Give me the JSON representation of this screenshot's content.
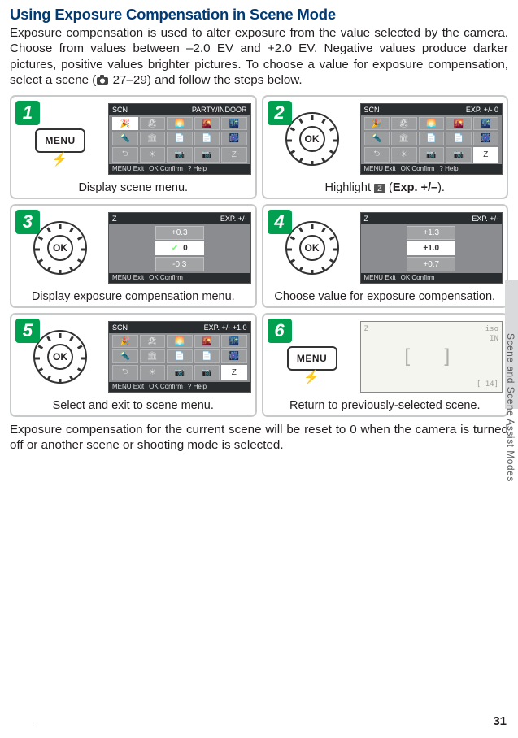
{
  "heading": "Using Exposure Compensation in Scene Mode",
  "intro_1": "Exposure compensation is used to alter exposure from the value selected by the camera.  Choose from values between –2.0 EV and +2.0 EV.  Negative values produce darker pictures, positive values brighter pictures.  To choose a value for exposure compensation, select a scene (",
  "intro_ref": " 27–29",
  "intro_2": ") and follow the steps below.",
  "cards": [
    {
      "num": "1",
      "caption_plain": "Display scene menu.",
      "illus": "menu",
      "lcd": {
        "top_left": "SCN",
        "top_right": "PARTY/INDOOR",
        "bottom": [
          "MENU Exit",
          "OK Confirm",
          "? Help"
        ],
        "type": "grid",
        "selected": 0
      }
    },
    {
      "num": "2",
      "caption_prefix": "Highlight ",
      "caption_icon": "Z",
      "caption_mid": " (",
      "caption_bold": "Exp. +/–",
      "caption_suffix": ").",
      "illus": "dial",
      "lcd": {
        "top_left": "SCN",
        "top_right": "EXP. +/-  0",
        "bottom": [
          "MENU Exit",
          "OK Confirm",
          "? Help"
        ],
        "type": "grid",
        "selected": 14
      }
    },
    {
      "num": "3",
      "caption_plain": "Display exposure compensation menu.",
      "illus": "dial",
      "lcd": {
        "top_left": "Z",
        "top_right": "EXP. +/-",
        "bottom": [
          "MENU Exit",
          "OK Confirm"
        ],
        "type": "exp",
        "rows": [
          {
            "label": "+0.3",
            "active": false
          },
          {
            "label": "0",
            "active": true,
            "check": true
          },
          {
            "label": "-0.3",
            "active": false
          }
        ]
      }
    },
    {
      "num": "4",
      "caption_plain": "Choose value for exposure compensation.",
      "illus": "dial",
      "lcd": {
        "top_left": "Z",
        "top_right": "EXP. +/-",
        "bottom": [
          "MENU Exit",
          "OK Confirm"
        ],
        "type": "exp",
        "rows": [
          {
            "label": "+1.3",
            "active": false
          },
          {
            "label": "+1.0",
            "active": true
          },
          {
            "label": "+0.7",
            "active": false
          }
        ]
      }
    },
    {
      "num": "5",
      "caption_plain": "Select and exit to scene menu.",
      "illus": "dial",
      "lcd": {
        "top_left": "SCN",
        "top_right": "EXP. +/- +1.0",
        "bottom": [
          "MENU Exit",
          "OK Confirm",
          "? Help"
        ],
        "type": "grid",
        "selected": 14
      }
    },
    {
      "num": "6",
      "caption_plain": "Return to previously-selected scene.",
      "illus": "menu",
      "lcd": {
        "type": "shoot",
        "tl": "Z",
        "tr1": "iso",
        "tr2": "IN",
        "br": "[  14]"
      }
    }
  ],
  "outro": "Exposure compensation for the current scene will be reset to 0 when the camera is turned off or another scene or shooting mode is selected.",
  "side_label": "Scene and Scene Assist Modes",
  "page_num": "31",
  "labels": {
    "menu": "MENU"
  },
  "colors": {
    "heading": "#003a75",
    "step_bg": "#00a050",
    "border": "#c7c9cb",
    "lcd_bg": "#8a8c8f"
  }
}
